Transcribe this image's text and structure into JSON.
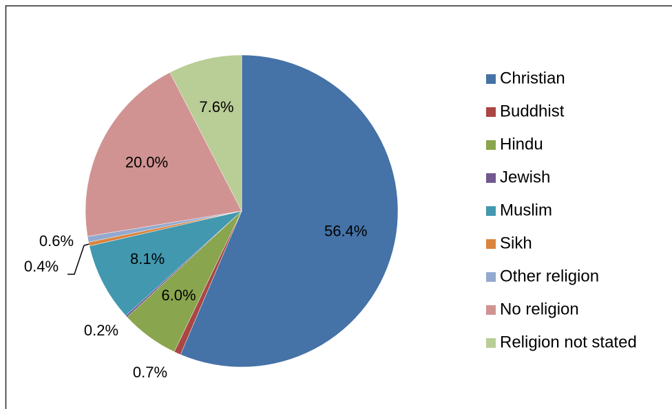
{
  "chart_data": {
    "type": "pie",
    "categories": [
      "Christian",
      "Buddhist",
      "Hindu",
      "Jewish",
      "Muslim",
      "Sikh",
      "Other religion",
      "No religion",
      "Religion not stated"
    ],
    "values": [
      56.4,
      0.7,
      6.0,
      0.2,
      8.1,
      0.4,
      0.6,
      20.0,
      7.6
    ],
    "value_labels": [
      "56.4%",
      "0.7%",
      "6.0%",
      "0.2%",
      "8.1%",
      "0.4%",
      "0.6%",
      "20.0%",
      "7.6%"
    ],
    "colors": [
      "#4572a7",
      "#aa4643",
      "#89a54e",
      "#71588f",
      "#4198af",
      "#db843d",
      "#93a9cf",
      "#d19392",
      "#b9cd96"
    ],
    "legend": "right"
  }
}
